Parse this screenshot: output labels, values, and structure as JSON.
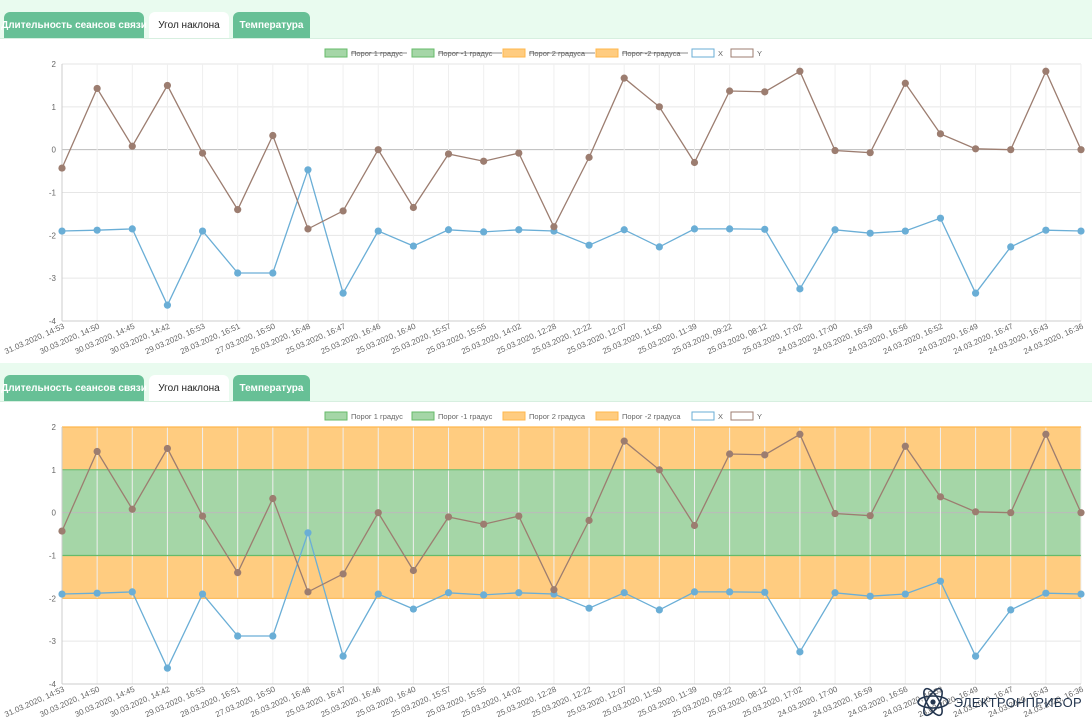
{
  "tabs": [
    {
      "label": "Длительность сеансов связи",
      "active": false
    },
    {
      "label": "Угол наклона",
      "active": true
    },
    {
      "label": "Температура",
      "active": false
    }
  ],
  "logo": {
    "text": "ЭЛЕКТРОНПРИБОР",
    "icon": "atom-icon"
  },
  "colors": {
    "tab_green": "#67c096",
    "band_green": "#a5d6a7",
    "band_green_line": "#66bb6a",
    "band_orange": "#ffcc80",
    "band_orange_line": "#ffb74d",
    "x_series": "#6aaed6",
    "y_series": "#9c7d70"
  },
  "chart_data": [
    {
      "type": "line",
      "legend_position": "top",
      "grid": true,
      "ylim": [
        -4,
        2
      ],
      "yticks": [
        2,
        1,
        0,
        -1,
        -2,
        -3,
        -4
      ],
      "bands_visible": false,
      "legend": [
        {
          "label": "Порог 1 градус",
          "hidden": true
        },
        {
          "label": "Порог -1 градус",
          "hidden": true
        },
        {
          "label": "Порог 2 градуса",
          "hidden": true
        },
        {
          "label": "Порог -2 градуса",
          "hidden": true
        },
        {
          "label": "X",
          "hidden": false
        },
        {
          "label": "Y",
          "hidden": false
        }
      ],
      "x": [
        "31.03.2020, 14:53",
        "30.03.2020, 14:50",
        "30.03.2020, 14:45",
        "30.03.2020, 14:42",
        "29.03.2020, 16:53",
        "28.03.2020, 16:51",
        "27.03.2020, 16:50",
        "26.03.2020, 16:48",
        "25.03.2020, 16:47",
        "25.03.2020, 16:46",
        "25.03.2020, 16:40",
        "25.03.2020, 15:57",
        "25.03.2020, 15:55",
        "25.03.2020, 14:02",
        "25.03.2020, 12:28",
        "25.03.2020, 12:22",
        "25.03.2020, 12:07",
        "25.03.2020, 11:50",
        "25.03.2020, 11:39",
        "25.03.2020, 09:22",
        "25.03.2020, 08:12",
        "25.03.2020, 17:02",
        "24.03.2020, 17:00",
        "24.03.2020, 16:59",
        "24.03.2020, 16:56",
        "24.03.2020, 16:52",
        "24.03.2020, 16:49",
        "24.03.2020, 16:47",
        "24.03.2020, 16:43",
        "24.03.2020, 16:36"
      ],
      "series": [
        {
          "name": "X",
          "values": [
            -1.9,
            -1.88,
            -1.85,
            -3.63,
            -1.9,
            -2.88,
            -2.88,
            -0.47,
            -3.35,
            -1.9,
            -2.25,
            -1.87,
            -1.92,
            -1.87,
            -1.9,
            -2.23,
            -1.87,
            -2.27,
            -1.85,
            -1.85,
            -1.86,
            -3.25,
            -1.87,
            -1.95,
            -1.9,
            -1.6,
            -3.35,
            -2.27,
            -1.88,
            -1.9
          ]
        },
        {
          "name": "Y",
          "values": [
            -0.43,
            1.43,
            0.08,
            1.5,
            -0.08,
            -1.4,
            0.33,
            -1.85,
            -1.43,
            0.0,
            -1.35,
            -0.1,
            -0.27,
            -0.08,
            -1.8,
            -0.18,
            1.67,
            1.0,
            -0.3,
            1.37,
            1.35,
            1.83,
            -0.02,
            -0.07,
            1.55,
            0.37,
            0.02,
            0.0,
            1.83,
            0.0
          ]
        }
      ]
    },
    {
      "type": "line",
      "legend_position": "top",
      "grid": true,
      "ylim": [
        -4,
        2
      ],
      "yticks": [
        2,
        1,
        0,
        -1,
        -2,
        -3,
        -4
      ],
      "bands_visible": true,
      "legend": [
        {
          "label": "Порог 1 градус",
          "hidden": false
        },
        {
          "label": "Порог -1 градус",
          "hidden": false
        },
        {
          "label": "Порог 2 градуса",
          "hidden": false
        },
        {
          "label": "Порог -2 градуса",
          "hidden": false
        },
        {
          "label": "X",
          "hidden": false
        },
        {
          "label": "Y",
          "hidden": false
        }
      ],
      "x": [
        "31.03.2020, 14:53",
        "30.03.2020, 14:50",
        "30.03.2020, 14:45",
        "30.03.2020, 14:42",
        "29.03.2020, 16:53",
        "28.03.2020, 16:51",
        "27.03.2020, 16:50",
        "26.03.2020, 16:48",
        "25.03.2020, 16:47",
        "25.03.2020, 16:46",
        "25.03.2020, 16:40",
        "25.03.2020, 15:57",
        "25.03.2020, 15:55",
        "25.03.2020, 14:02",
        "25.03.2020, 12:28",
        "25.03.2020, 12:22",
        "25.03.2020, 12:07",
        "25.03.2020, 11:50",
        "25.03.2020, 11:39",
        "25.03.2020, 09:22",
        "25.03.2020, 08:12",
        "25.03.2020, 17:02",
        "24.03.2020, 17:00",
        "24.03.2020, 16:59",
        "24.03.2020, 16:56",
        "24.03.2020, 16:52",
        "24.03.2020, 16:49",
        "24.03.2020, 16:47",
        "24.03.2020, 16:43",
        "24.03.2020, 16:36"
      ],
      "series": [
        {
          "name": "X",
          "values": [
            -1.9,
            -1.88,
            -1.85,
            -3.63,
            -1.9,
            -2.88,
            -2.88,
            -0.47,
            -3.35,
            -1.9,
            -2.25,
            -1.87,
            -1.92,
            -1.87,
            -1.9,
            -2.23,
            -1.87,
            -2.27,
            -1.85,
            -1.85,
            -1.86,
            -3.25,
            -1.87,
            -1.95,
            -1.9,
            -1.6,
            -3.35,
            -2.27,
            -1.88,
            -1.9
          ]
        },
        {
          "name": "Y",
          "values": [
            -0.43,
            1.43,
            0.08,
            1.5,
            -0.08,
            -1.4,
            0.33,
            -1.85,
            -1.43,
            0.0,
            -1.35,
            -0.1,
            -0.27,
            -0.08,
            -1.8,
            -0.18,
            1.67,
            1.0,
            -0.3,
            1.37,
            1.35,
            1.83,
            -0.02,
            -0.07,
            1.55,
            0.37,
            0.02,
            0.0,
            1.83,
            0.0
          ]
        }
      ]
    }
  ]
}
